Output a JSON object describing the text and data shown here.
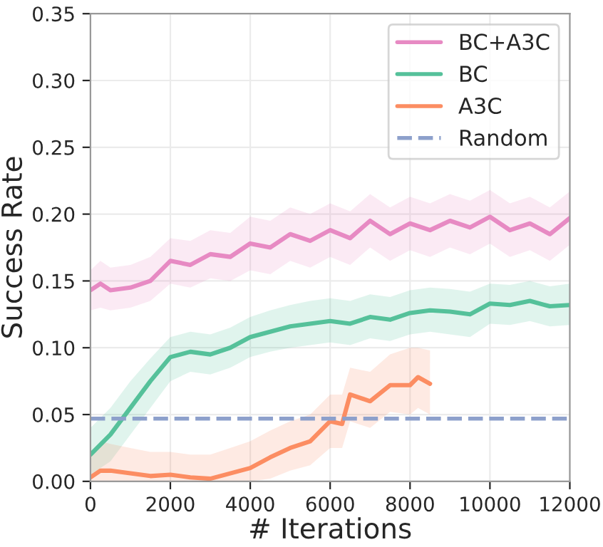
{
  "chart_data": {
    "type": "line",
    "xlabel": "# Iterations",
    "ylabel": "Success Rate",
    "xlim": [
      0,
      12000
    ],
    "xticks": [
      0,
      2000,
      4000,
      6000,
      8000,
      10000,
      12000
    ],
    "ylim": [
      0,
      0.35
    ],
    "yticks": [
      {
        "value": 0,
        "label": "0.00"
      },
      0.05,
      {
        "value": 0.1,
        "label": "0.10"
      },
      0.15,
      {
        "value": 0.2,
        "label": "0.20"
      },
      0.25,
      {
        "value": 0.3,
        "label": "0.30"
      },
      0.35
    ],
    "grid": true,
    "legend": "top right",
    "line_style": "solid",
    "marker": "none",
    "series": [
      {
        "name": "BC+A3C",
        "color": "#e78ac3",
        "x": [
          0,
          250,
          500,
          1000,
          1500,
          2000,
          2500,
          3000,
          3500,
          4000,
          4500,
          5000,
          5500,
          6000,
          6500,
          7000,
          7500,
          8000,
          8500,
          9000,
          9500,
          10000,
          10500,
          11000,
          11500,
          12000
        ],
        "values": [
          0.143,
          0.148,
          0.143,
          0.145,
          0.15,
          0.165,
          0.162,
          0.17,
          0.168,
          0.178,
          0.175,
          0.185,
          0.18,
          0.188,
          0.182,
          0.195,
          0.185,
          0.193,
          0.188,
          0.195,
          0.19,
          0.198,
          0.188,
          0.193,
          0.185,
          0.197
        ],
        "lower": [
          0.128,
          0.13,
          0.128,
          0.13,
          0.135,
          0.148,
          0.145,
          0.152,
          0.15,
          0.158,
          0.155,
          0.165,
          0.16,
          0.168,
          0.162,
          0.175,
          0.165,
          0.173,
          0.168,
          0.175,
          0.17,
          0.178,
          0.168,
          0.173,
          0.165,
          0.177
        ],
        "upper": [
          0.158,
          0.165,
          0.16,
          0.162,
          0.168,
          0.182,
          0.18,
          0.188,
          0.186,
          0.198,
          0.195,
          0.205,
          0.2,
          0.208,
          0.202,
          0.215,
          0.205,
          0.213,
          0.208,
          0.215,
          0.21,
          0.218,
          0.208,
          0.213,
          0.205,
          0.217
        ]
      },
      {
        "name": "BC",
        "color": "#55c19a",
        "x": [
          0,
          500,
          1000,
          1500,
          2000,
          2500,
          3000,
          3500,
          4000,
          4500,
          5000,
          5500,
          6000,
          6500,
          7000,
          7500,
          8000,
          8500,
          9000,
          9500,
          10000,
          10500,
          11000,
          11500,
          12000
        ],
        "values": [
          0.02,
          0.035,
          0.055,
          0.075,
          0.093,
          0.097,
          0.095,
          0.1,
          0.108,
          0.112,
          0.116,
          0.118,
          0.12,
          0.118,
          0.123,
          0.121,
          0.126,
          0.128,
          0.127,
          0.125,
          0.133,
          0.132,
          0.135,
          0.131,
          0.132
        ],
        "lower": [
          0.005,
          0.015,
          0.035,
          0.055,
          0.075,
          0.082,
          0.08,
          0.085,
          0.093,
          0.097,
          0.1,
          0.102,
          0.104,
          0.102,
          0.107,
          0.105,
          0.11,
          0.112,
          0.11,
          0.108,
          0.118,
          0.117,
          0.12,
          0.116,
          0.117
        ],
        "upper": [
          0.04,
          0.055,
          0.075,
          0.092,
          0.108,
          0.112,
          0.11,
          0.115,
          0.123,
          0.128,
          0.132,
          0.135,
          0.137,
          0.135,
          0.14,
          0.138,
          0.143,
          0.145,
          0.144,
          0.142,
          0.148,
          0.147,
          0.15,
          0.146,
          0.148
        ]
      },
      {
        "name": "A3C",
        "color": "#fc8d62",
        "x": [
          0,
          250,
          500,
          1000,
          1500,
          2000,
          2500,
          3000,
          3500,
          4000,
          4500,
          5000,
          5500,
          6000,
          6300,
          6500,
          7000,
          7500,
          8000,
          8200,
          8500
        ],
        "values": [
          0.003,
          0.008,
          0.008,
          0.006,
          0.004,
          0.005,
          0.003,
          0.002,
          0.006,
          0.01,
          0.018,
          0.025,
          0.03,
          0.045,
          0.043,
          0.065,
          0.06,
          0.072,
          0.072,
          0.078,
          0.073
        ],
        "lower": [
          0.0,
          0.0,
          0.0,
          0.0,
          0.0,
          0.0,
          0.0,
          0.0,
          0.0,
          0.0,
          0.002,
          0.008,
          0.012,
          0.025,
          0.025,
          0.045,
          0.04,
          0.052,
          0.05,
          0.055,
          0.05
        ],
        "upper": [
          0.02,
          0.03,
          0.028,
          0.025,
          0.022,
          0.022,
          0.02,
          0.02,
          0.025,
          0.03,
          0.038,
          0.045,
          0.05,
          0.065,
          0.065,
          0.085,
          0.082,
          0.095,
          0.1,
          0.1,
          0.098
        ]
      }
    ],
    "ref_lines": [
      {
        "axis": "y",
        "value": 0.047,
        "label": "Random",
        "color": "#8da0cb",
        "line_style": "dashed"
      }
    ]
  }
}
